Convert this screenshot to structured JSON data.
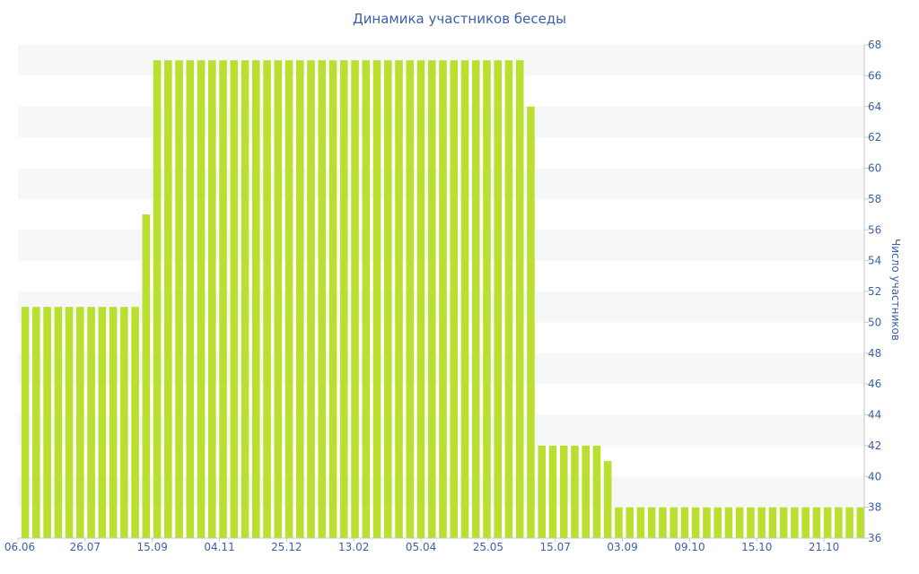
{
  "chart_data": {
    "type": "bar",
    "title": "Динамика участников беседы",
    "ylabel": "Число участников",
    "ylim": [
      36,
      68
    ],
    "y_ticks": [
      36,
      38,
      40,
      42,
      44,
      46,
      48,
      50,
      52,
      54,
      56,
      58,
      60,
      62,
      64,
      66,
      68
    ],
    "y_axis_position": "right",
    "grid": "alternating horizontal bands",
    "x_tick_labels": [
      "06.06",
      "26.07",
      "15.09",
      "04.11",
      "25.12",
      "13.02",
      "05.04",
      "25.05",
      "15.07",
      "03.09",
      "09.10",
      "15.10",
      "21.10"
    ],
    "series": [
      {
        "color": "#b9e02f",
        "values": [
          51,
          51,
          51,
          51,
          51,
          51,
          51,
          51,
          51,
          51,
          51,
          57,
          67,
          67,
          67,
          67,
          67,
          67,
          67,
          67,
          67,
          67,
          67,
          67,
          67,
          67,
          67,
          67,
          67,
          67,
          67,
          67,
          67,
          67,
          67,
          67,
          67,
          67,
          67,
          67,
          67,
          67,
          67,
          67,
          67,
          67,
          64,
          42,
          42,
          42,
          42,
          42,
          42,
          41,
          38,
          38,
          38,
          38,
          38,
          38,
          38,
          38,
          38,
          38,
          38,
          38,
          38,
          38,
          38,
          38,
          38,
          38,
          38,
          38,
          38,
          38,
          38
        ]
      }
    ]
  }
}
